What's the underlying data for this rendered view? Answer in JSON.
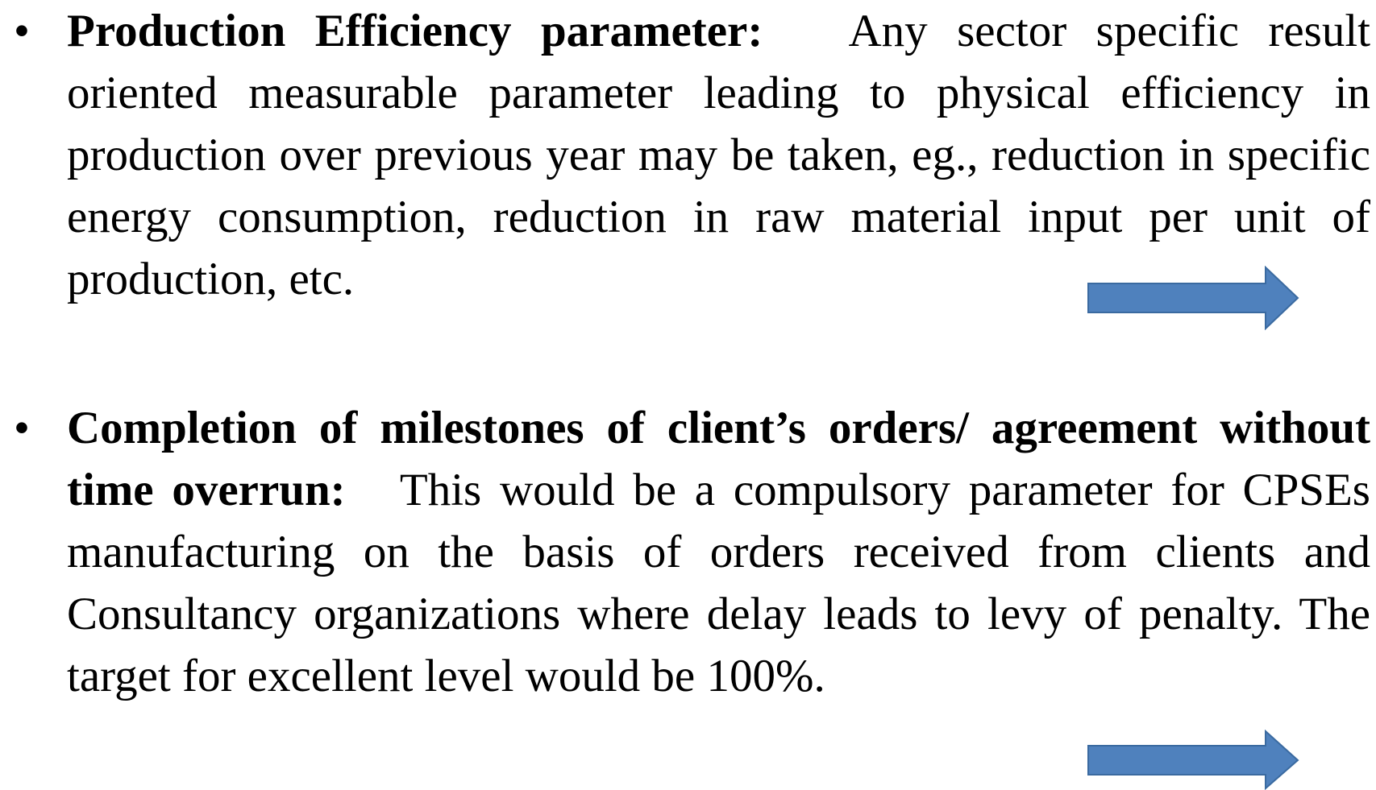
{
  "items": [
    {
      "heading": "Production Efficiency parameter:",
      "text": "Any sector specific result oriented measurable parameter leading to physical efficiency in production over previous year may be taken, eg., reduction in specific energy consumption, reduction in raw material input per unit of production, etc."
    },
    {
      "heading": "Completion of milestones of client’s orders/ agreement without time overrun:",
      "text": "This would be a compulsory parameter for CPSEs manufacturing on the basis of orders received from clients and Consultancy organizations where delay leads to levy of penalty.  The target for excellent level would be 100%."
    }
  ]
}
